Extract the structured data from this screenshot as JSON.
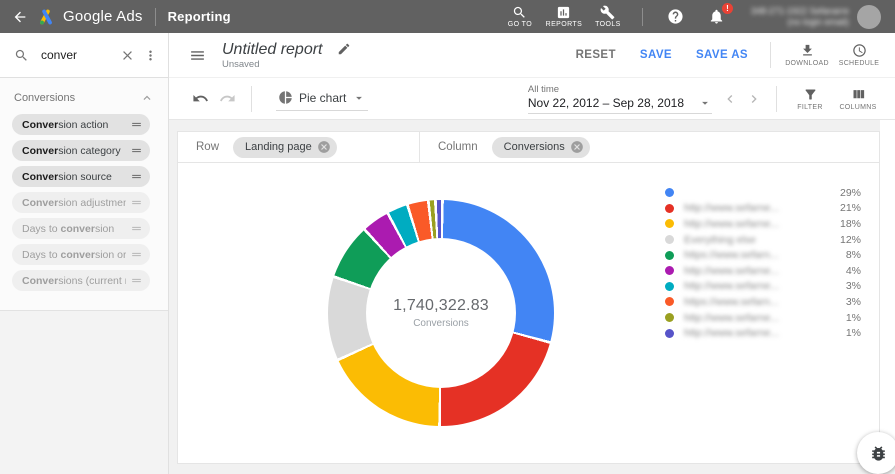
{
  "topbar": {
    "brand": "Google Ads",
    "section": "Reporting",
    "nav": [
      {
        "label": "GO TO",
        "icon": "search-icon"
      },
      {
        "label": "REPORTS",
        "icon": "reports-icon"
      },
      {
        "label": "TOOLS",
        "icon": "tools-icon"
      }
    ],
    "notification_badge": "!",
    "account": {
      "line1": "348-271-1922 Sefanarre",
      "line2": "(no login email)",
      "redacted": true
    },
    "bar_color": "#616161"
  },
  "sidebar": {
    "search": {
      "value": "conver"
    },
    "section_title": "Conversions",
    "fields": [
      {
        "active": true,
        "segments": [
          {
            "t": "Conver",
            "b": true
          },
          {
            "t": "sion action",
            "b": false
          }
        ]
      },
      {
        "active": true,
        "segments": [
          {
            "t": "Conver",
            "b": true
          },
          {
            "t": "sion category",
            "b": false
          }
        ]
      },
      {
        "active": true,
        "segments": [
          {
            "t": "Conver",
            "b": true
          },
          {
            "t": "sion source",
            "b": false
          }
        ]
      },
      {
        "active": false,
        "segments": [
          {
            "t": "Conver",
            "b": true
          },
          {
            "t": "sion adjustment",
            "b": false
          }
        ]
      },
      {
        "active": false,
        "segments": [
          {
            "t": "Days to ",
            "b": false
          },
          {
            "t": "conver",
            "b": true
          },
          {
            "t": "sion",
            "b": false
          }
        ]
      },
      {
        "active": false,
        "segments": [
          {
            "t": "Days to ",
            "b": false
          },
          {
            "t": "conver",
            "b": true
          },
          {
            "t": "sion or ad..",
            "b": false
          }
        ]
      },
      {
        "active": false,
        "segments": [
          {
            "t": "Conver",
            "b": true
          },
          {
            "t": "sions (current mo..",
            "b": false
          }
        ]
      }
    ]
  },
  "report_header": {
    "title": "Untitled report",
    "status": "Unsaved",
    "reset": "RESET",
    "save": "SAVE",
    "save_as": "SAVE AS",
    "download": "DOWNLOAD",
    "schedule": "SCHEDULE"
  },
  "toolbar": {
    "chart_type": "Pie chart",
    "date_preset": "All time",
    "date_range": "Nov 22, 2012 – Sep 28, 2018",
    "filter": "FILTER",
    "columns": "COLUMNS"
  },
  "builder": {
    "row_label": "Row",
    "row_value": "Landing page",
    "column_label": "Column",
    "column_value": "Conversions"
  },
  "chart_data": {
    "type": "pie",
    "donut": true,
    "dimension": "Landing page",
    "metric": "Conversions",
    "center_value": "1,740,322.83",
    "center_label": "Conversions",
    "start_angle_deg": 0,
    "direction": "clockwise",
    "legend_position": "right",
    "slices": [
      {
        "label": "",
        "label_redacted": true,
        "pct": 29,
        "color": "#4285f4"
      },
      {
        "label": "http://www.sefarne...",
        "label_redacted": true,
        "pct": 21,
        "color": "#e53125"
      },
      {
        "label": "http://www.sefarne...",
        "label_redacted": true,
        "pct": 18,
        "color": "#fbbc04"
      },
      {
        "label": "Everything else",
        "label_redacted": true,
        "pct": 12,
        "color": "#d9d9d9"
      },
      {
        "label": "https://www.sefarn...",
        "label_redacted": true,
        "pct": 8,
        "color": "#0f9d58"
      },
      {
        "label": "http://www.sefarne...",
        "label_redacted": true,
        "pct": 4,
        "color": "#ab1bb0"
      },
      {
        "label": "http://www.sefarne...",
        "label_redacted": true,
        "pct": 3,
        "color": "#00acc1"
      },
      {
        "label": "https://www.sefarn...",
        "label_redacted": true,
        "pct": 3,
        "color": "#fa5a28"
      },
      {
        "label": "http://www.sefarne...",
        "label_redacted": true,
        "pct": 1,
        "color": "#9aa021"
      },
      {
        "label": "http://www.sefarne...",
        "label_redacted": true,
        "pct": 1,
        "color": "#5754c9"
      }
    ]
  },
  "icons": {
    "back-arrow-icon": "left arrow",
    "google-ads-logo": "brand mark",
    "search-icon": "magnifier",
    "reports-icon": "bar chart box",
    "tools-icon": "wrench",
    "help-icon": "question mark circle",
    "bell-icon": "notifications bell",
    "menu-icon": "hamburger",
    "edit-icon": "pencil",
    "download-icon": "download arrow",
    "schedule-icon": "clock",
    "undo-icon": "curved left arrow",
    "redo-icon": "curved right arrow",
    "pie-chart-icon": "pie segments",
    "caret-down-icon": "dropdown triangle",
    "chevron-left-icon": "previous",
    "chevron-right-icon": "next",
    "filter-icon": "funnel",
    "columns-icon": "three columns",
    "close-icon": "x",
    "chip-remove-icon": "x in circle",
    "more-vert-icon": "vertical dots",
    "chevron-up-icon": "collapse",
    "drag-handle-icon": "two lines",
    "bug-icon": "bug report"
  }
}
